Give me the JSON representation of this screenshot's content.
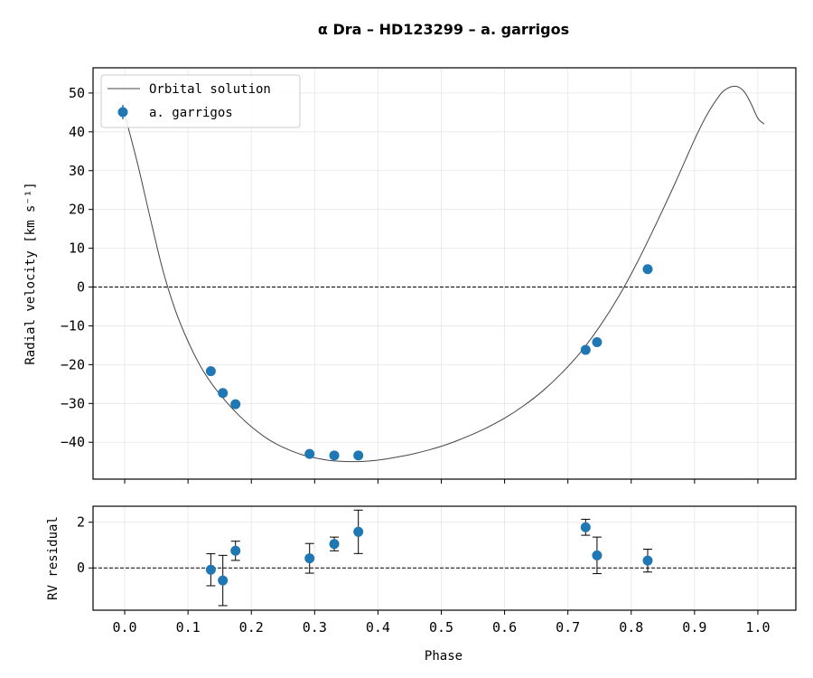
{
  "chart_data": {
    "type": "scatter",
    "title": "α  Dra  –  HD123299  –  a.  garrigos",
    "colors": {
      "points": "#1f77b4",
      "curve": "#444444",
      "zero_line": "#000000",
      "grid": "#e6e6e6"
    },
    "legend": {
      "placement": "top-left",
      "entries": [
        "Orbital solution",
        "a. garrigos"
      ]
    },
    "grid": true,
    "xlabel": "Phase",
    "xlim": [
      -0.05,
      1.06
    ],
    "xticks": [
      "0.0",
      "0.1",
      "0.2",
      "0.3",
      "0.4",
      "0.5",
      "0.6",
      "0.7",
      "0.8",
      "0.9",
      "1.0"
    ],
    "top_panel": {
      "ylabel": "Radial velocity [km s⁻¹]",
      "ylim": [
        -49.5,
        56.5
      ],
      "yticks": [
        "50",
        "40",
        "30",
        "20",
        "10",
        "0",
        "−10",
        "−20",
        "−30",
        "−40"
      ],
      "curve": {
        "name": "Orbital solution",
        "x": [
          0.0,
          0.02,
          0.04,
          0.06,
          0.08,
          0.1,
          0.12,
          0.14,
          0.16,
          0.18,
          0.2,
          0.22,
          0.24,
          0.26,
          0.28,
          0.3,
          0.32,
          0.34,
          0.36,
          0.38,
          0.4,
          0.42,
          0.45,
          0.48,
          0.51,
          0.54,
          0.57,
          0.6,
          0.63,
          0.66,
          0.69,
          0.72,
          0.75,
          0.78,
          0.81,
          0.84,
          0.87,
          0.9,
          0.92,
          0.94,
          0.95,
          0.96,
          0.97,
          0.98,
          0.99,
          1.0,
          1.01
        ],
        "y": [
          44.5,
          32,
          18,
          4.5,
          -6,
          -14,
          -20.5,
          -25.5,
          -29.5,
          -33,
          -36,
          -38.5,
          -40.5,
          -42,
          -43.2,
          -44,
          -44.6,
          -44.9,
          -45,
          -44.9,
          -44.6,
          -44.1,
          -43.2,
          -42,
          -40.5,
          -38.6,
          -36.4,
          -33.8,
          -30.6,
          -26.8,
          -22.2,
          -16.8,
          -10.2,
          -2.5,
          6.5,
          16.5,
          27,
          38,
          44.5,
          49.5,
          51,
          51.7,
          51.5,
          50,
          47,
          43.5,
          42
        ]
      },
      "points": {
        "name": "a. garrigos",
        "x": [
          0.136,
          0.155,
          0.175,
          0.292,
          0.331,
          0.369,
          0.728,
          0.746,
          0.826
        ],
        "y": [
          -21.7,
          -27.3,
          -30.2,
          -43.0,
          -43.4,
          -43.4,
          -16.2,
          -14.2,
          4.6
        ]
      }
    },
    "bottom_panel": {
      "ylabel": "RV residual",
      "ylim": [
        -1.85,
        2.7
      ],
      "yticks": [
        "2",
        "0"
      ],
      "points": {
        "x": [
          0.136,
          0.155,
          0.175,
          0.292,
          0.331,
          0.369,
          0.728,
          0.746,
          0.826
        ],
        "y": [
          -0.08,
          -0.55,
          0.75,
          0.42,
          1.05,
          1.58,
          1.78,
          0.55,
          0.32
        ],
        "err": [
          0.7,
          1.1,
          0.42,
          0.65,
          0.3,
          0.95,
          0.35,
          0.8,
          0.5
        ]
      }
    }
  }
}
